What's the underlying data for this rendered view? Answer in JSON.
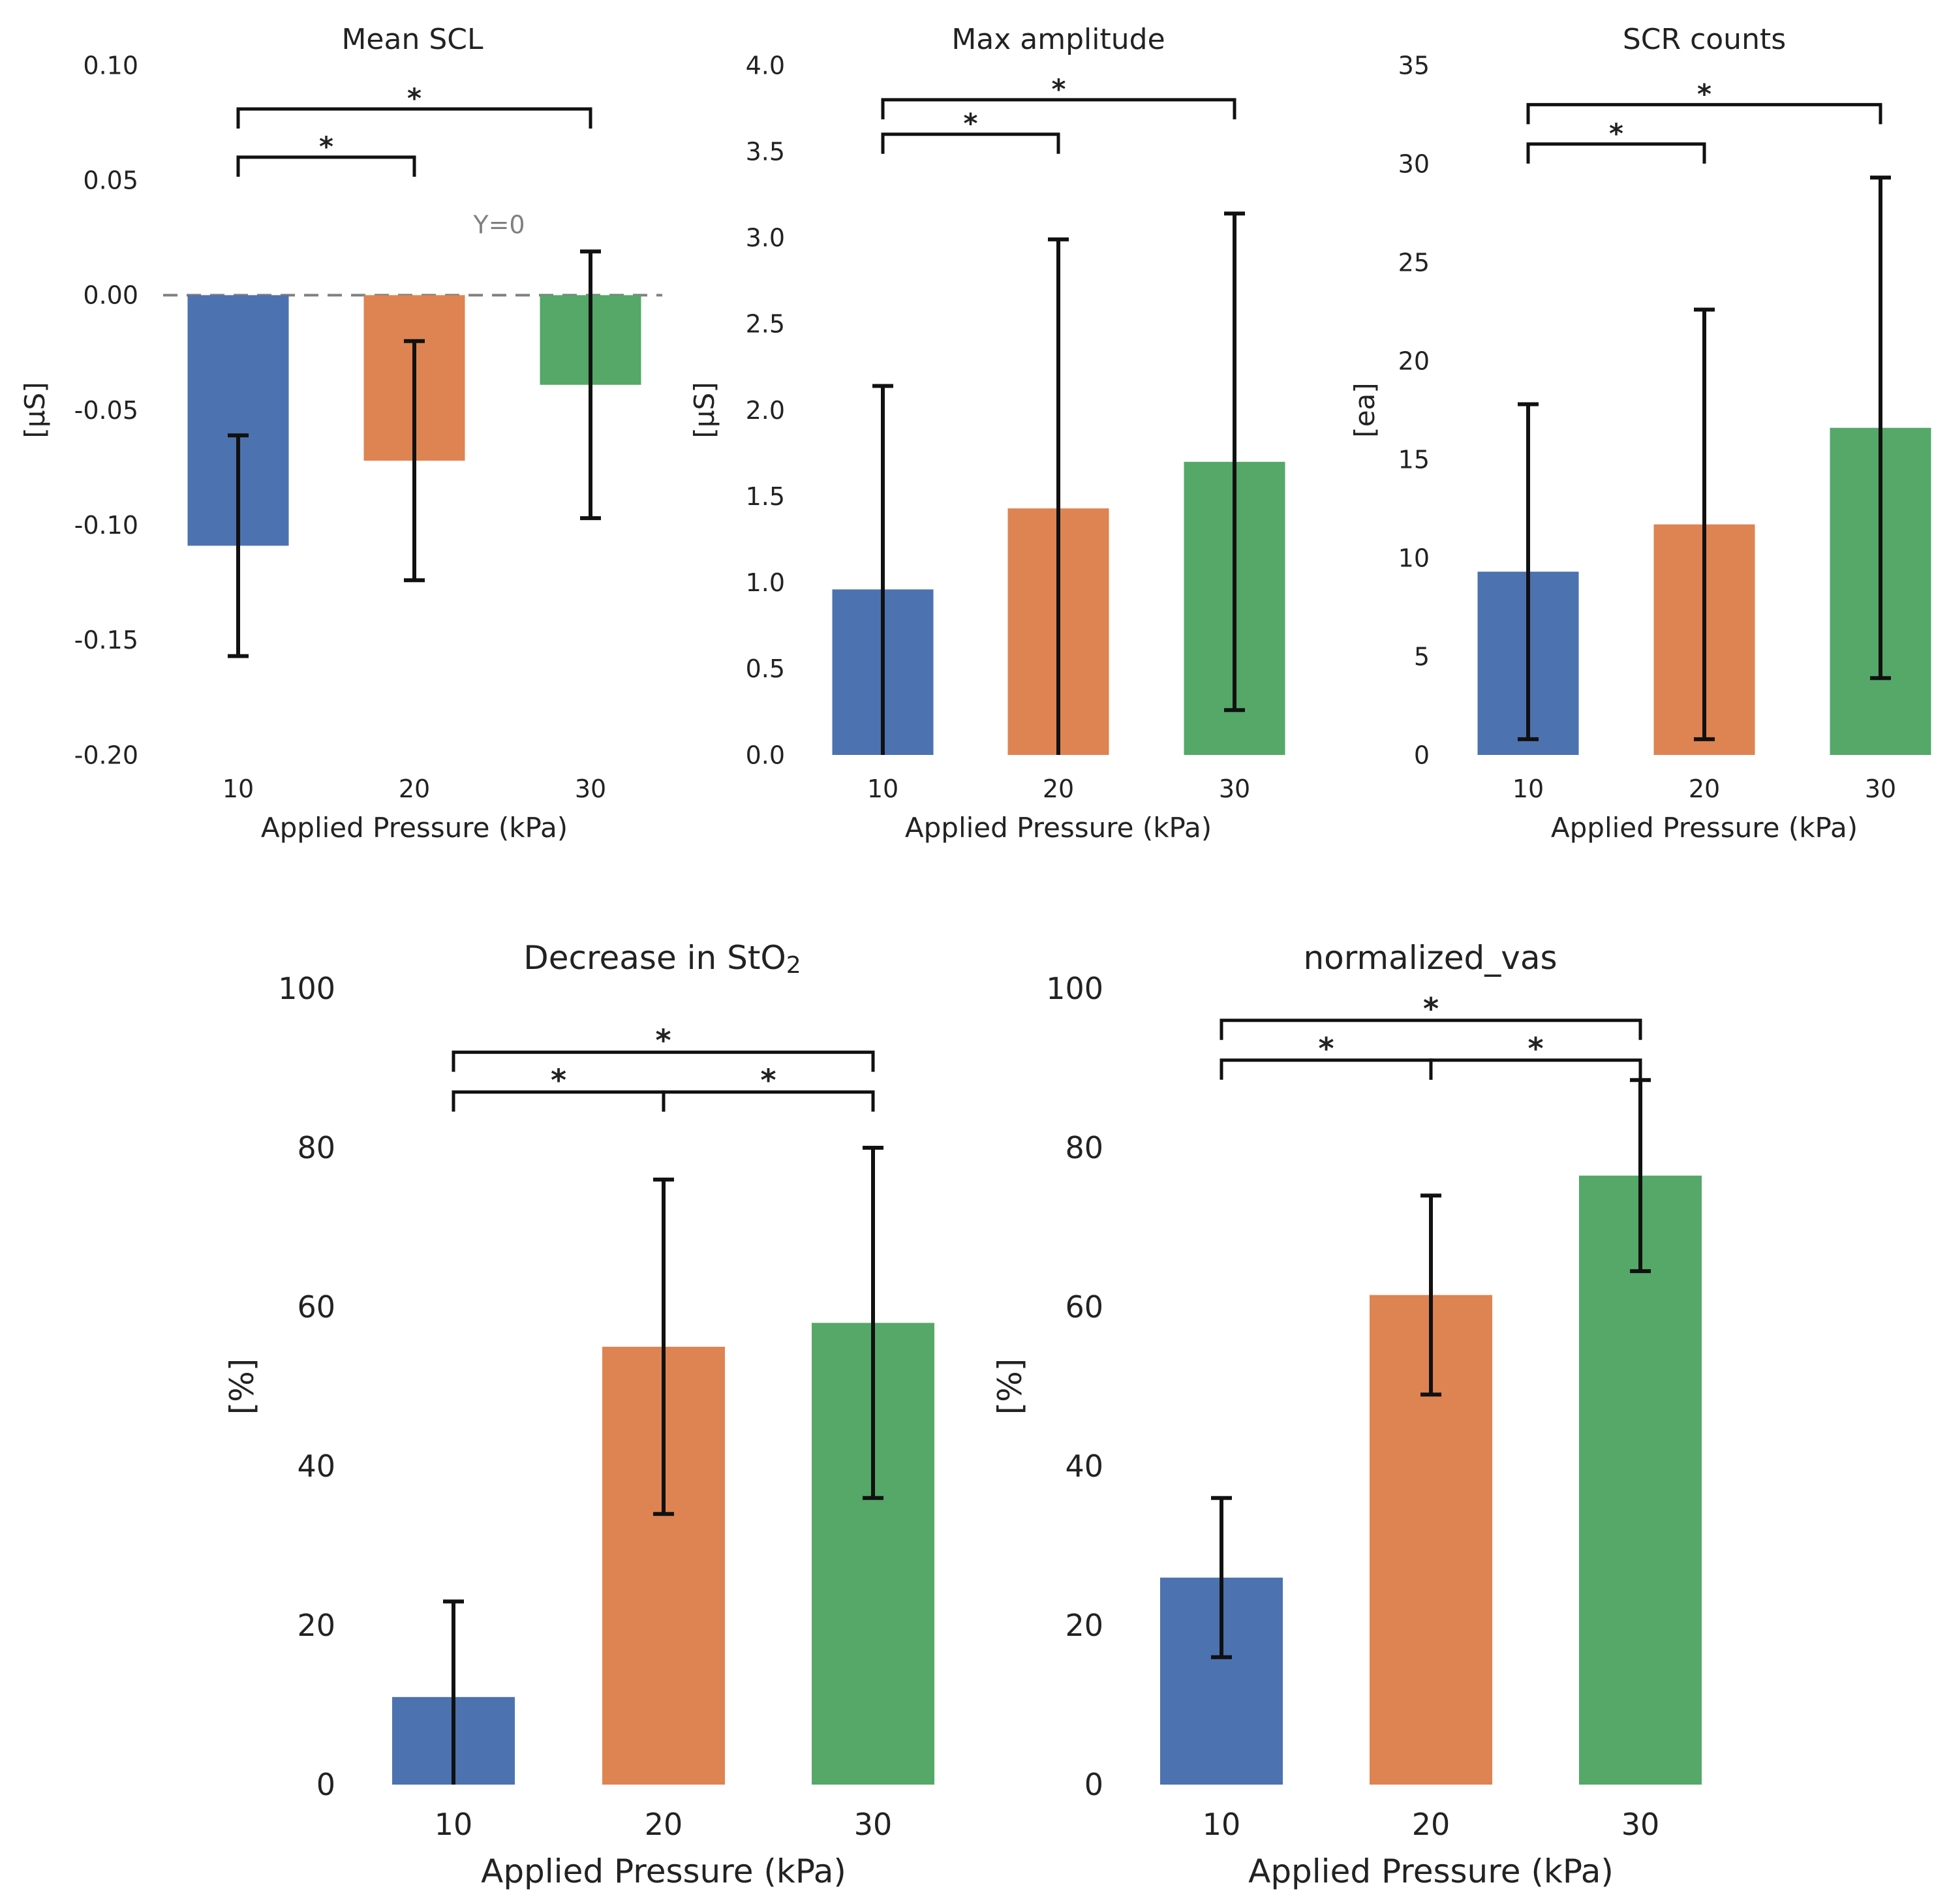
{
  "figure": {
    "background": "#ffffff"
  },
  "colors": {
    "blue": "#4c72b0",
    "orange": "#dd8452",
    "green": "#55a868",
    "zero_line": "#808080",
    "error_bar": "#111111"
  },
  "chart_data": [
    {
      "id": "mean_scl",
      "type": "bar",
      "title": "Mean SCL",
      "title_sub": "",
      "xlabel": "Applied Pressure (kPa)",
      "ylabel": "[μS]",
      "categories": [
        "10",
        "20",
        "30"
      ],
      "values": [
        -0.109,
        -0.072,
        -0.039
      ],
      "errors": [
        0.048,
        0.052,
        0.058
      ],
      "ylim": [
        -0.2,
        0.1
      ],
      "yticks": [
        -0.2,
        -0.15,
        -0.1,
        -0.05,
        0.0,
        0.05,
        0.1
      ],
      "ytick_labels": [
        "-0.20",
        "-0.15",
        "-0.10",
        "-0.05",
        "0.00",
        "0.05",
        "0.10"
      ],
      "zero_line": {
        "value": 0,
        "label": "Y=0"
      },
      "significance": [
        {
          "from": 0,
          "to": 1,
          "level": 0.06,
          "label": "*"
        },
        {
          "from": 0,
          "to": 2,
          "level": 0.081,
          "label": "*"
        }
      ]
    },
    {
      "id": "max_amplitude",
      "type": "bar",
      "title": "Max amplitude",
      "title_sub": "",
      "xlabel": "Applied Pressure (kPa)",
      "ylabel": "[μS]",
      "categories": [
        "10",
        "20",
        "30"
      ],
      "values": [
        0.96,
        1.43,
        1.7
      ],
      "errors": [
        1.18,
        1.56,
        1.44
      ],
      "ylim": [
        0,
        4.0
      ],
      "yticks": [
        0,
        0.5,
        1.0,
        1.5,
        2.0,
        2.5,
        3.0,
        3.5,
        4.0
      ],
      "ytick_labels": [
        "0.0",
        "0.5",
        "1.0",
        "1.5",
        "2.0",
        "2.5",
        "3.0",
        "3.5",
        "4.0"
      ],
      "significance": [
        {
          "from": 0,
          "to": 1,
          "level": 3.6,
          "label": "*"
        },
        {
          "from": 0,
          "to": 2,
          "level": 3.8,
          "label": "*"
        }
      ]
    },
    {
      "id": "scr_counts",
      "type": "bar",
      "title": "SCR counts",
      "title_sub": "",
      "xlabel": "Applied Pressure (kPa)",
      "ylabel": "[ea]",
      "categories": [
        "10",
        "20",
        "30"
      ],
      "values": [
        9.3,
        11.7,
        16.6
      ],
      "errors": [
        8.5,
        10.9,
        12.7
      ],
      "ylim": [
        0,
        35
      ],
      "yticks": [
        0,
        5,
        10,
        15,
        20,
        25,
        30,
        35
      ],
      "ytick_labels": [
        "0",
        "5",
        "10",
        "15",
        "20",
        "25",
        "30",
        "35"
      ],
      "significance": [
        {
          "from": 0,
          "to": 1,
          "level": 31.0,
          "label": "*"
        },
        {
          "from": 0,
          "to": 2,
          "level": 33.0,
          "label": "*"
        }
      ]
    },
    {
      "id": "decrease_sto2",
      "type": "bar",
      "title": "Decrease in StO",
      "title_sub": "2",
      "xlabel": "Applied Pressure (kPa)",
      "ylabel": "[%]",
      "categories": [
        "10",
        "20",
        "30"
      ],
      "values": [
        11,
        55,
        58
      ],
      "errors": [
        12,
        21,
        22
      ],
      "ylim": [
        0,
        100
      ],
      "yticks": [
        0,
        20,
        40,
        60,
        80,
        100
      ],
      "ytick_labels": [
        "0",
        "20",
        "40",
        "60",
        "80",
        "100"
      ],
      "significance": [
        {
          "from": 0,
          "to": 1,
          "level": 87,
          "label": "*"
        },
        {
          "from": 1,
          "to": 2,
          "level": 87,
          "label": "*"
        },
        {
          "from": 0,
          "to": 2,
          "level": 92,
          "label": "*"
        }
      ]
    },
    {
      "id": "normalized_vas",
      "type": "bar",
      "title": "normalized_vas",
      "title_sub": "",
      "xlabel": "Applied Pressure (kPa)",
      "ylabel": "[%]",
      "categories": [
        "10",
        "20",
        "30"
      ],
      "values": [
        26,
        61.5,
        76.5
      ],
      "errors": [
        10,
        12.5,
        12
      ],
      "ylim": [
        0,
        100
      ],
      "yticks": [
        0,
        20,
        40,
        60,
        80,
        100
      ],
      "ytick_labels": [
        "0",
        "20",
        "40",
        "60",
        "80",
        "100"
      ],
      "significance": [
        {
          "from": 0,
          "to": 1,
          "level": 91,
          "label": "*"
        },
        {
          "from": 1,
          "to": 2,
          "level": 91,
          "label": "*"
        },
        {
          "from": 0,
          "to": 2,
          "level": 96,
          "label": "*"
        }
      ]
    }
  ]
}
